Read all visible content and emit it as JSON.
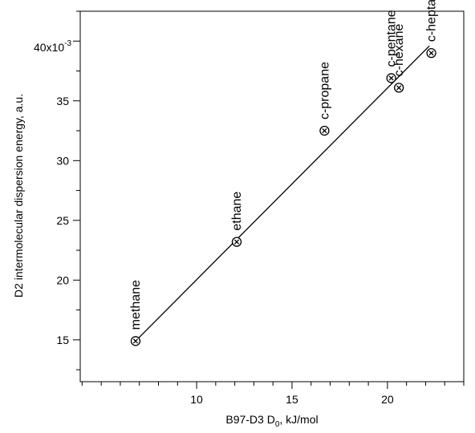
{
  "chart_data": {
    "type": "scatter",
    "title": "",
    "xlabel": "B97-D3 D",
    "xlabel_sub": "0",
    "xlabel_suffix": ", kJ/mol",
    "ylabel": "D2 intermolecular dispersion energy, a.u.",
    "xlim": [
      3.9,
      24.0
    ],
    "ylim": [
      11.5,
      42.5
    ],
    "y_scale_label": {
      "base": "40x10",
      "exponent": "-3"
    },
    "x_major_ticks": [
      10,
      15,
      20
    ],
    "x_tick_labels": [
      "10",
      "15",
      "20"
    ],
    "x_minor_step": 1,
    "y_major_ticks": [
      15,
      20,
      25,
      30,
      35
    ],
    "y_tick_labels": [
      "15",
      "20",
      "25",
      "30",
      "35"
    ],
    "grid": false,
    "points": [
      {
        "label": "methane",
        "x": 6.8,
        "y": 14.9
      },
      {
        "label": "ethane",
        "x": 12.1,
        "y": 23.2
      },
      {
        "label": "c-propane",
        "x": 16.7,
        "y": 32.5
      },
      {
        "label": "c-pentane",
        "x": 20.2,
        "y": 36.9
      },
      {
        "label": "c-hexane",
        "x": 20.6,
        "y": 36.1
      },
      {
        "label": "c-heptane",
        "x": 22.3,
        "y": 39.0
      }
    ],
    "fit_line": {
      "x": [
        6.8,
        22.2
      ],
      "y": [
        14.9,
        39.6
      ]
    },
    "marker": "circled-x"
  }
}
